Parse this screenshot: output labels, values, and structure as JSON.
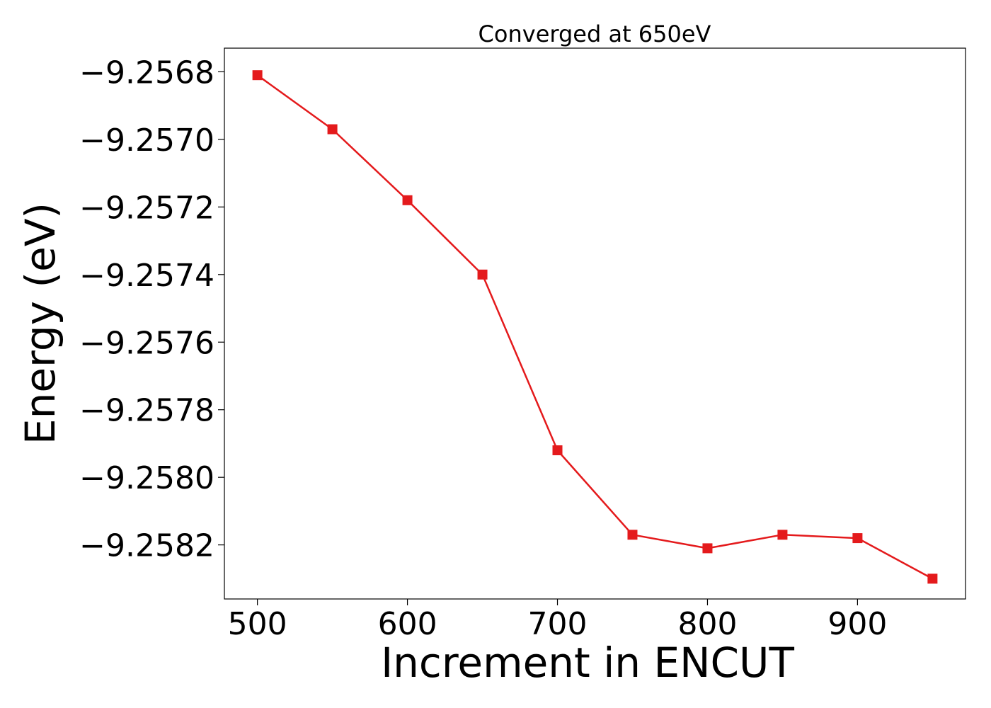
{
  "chart_data": {
    "type": "line",
    "title": "Converged at 650eV",
    "xlabel": "Increment in ENCUT",
    "ylabel": "Energy (eV)",
    "xlim": [
      478,
      972
    ],
    "ylim": [
      -9.25836,
      -9.25673
    ],
    "x_ticks": [
      500,
      600,
      700,
      800,
      900
    ],
    "y_ticks": [
      -9.2568,
      -9.257,
      -9.2572,
      -9.2574,
      -9.2576,
      -9.2578,
      -9.258,
      -9.2582
    ],
    "y_tick_labels": [
      "−9.2568",
      "−9.2570",
      "−9.2572",
      "−9.2574",
      "−9.2576",
      "−9.2578",
      "−9.2580",
      "−9.2582"
    ],
    "grid": false,
    "series": [
      {
        "color": "#e41a1c",
        "marker": "square",
        "x": [
          500,
          550,
          600,
          650,
          700,
          750,
          800,
          850,
          900,
          950
        ],
        "y": [
          -9.25681,
          -9.25697,
          -9.25718,
          -9.2574,
          -9.25792,
          -9.25817,
          -9.25821,
          -9.25817,
          -9.25818,
          -9.2583
        ]
      }
    ]
  }
}
